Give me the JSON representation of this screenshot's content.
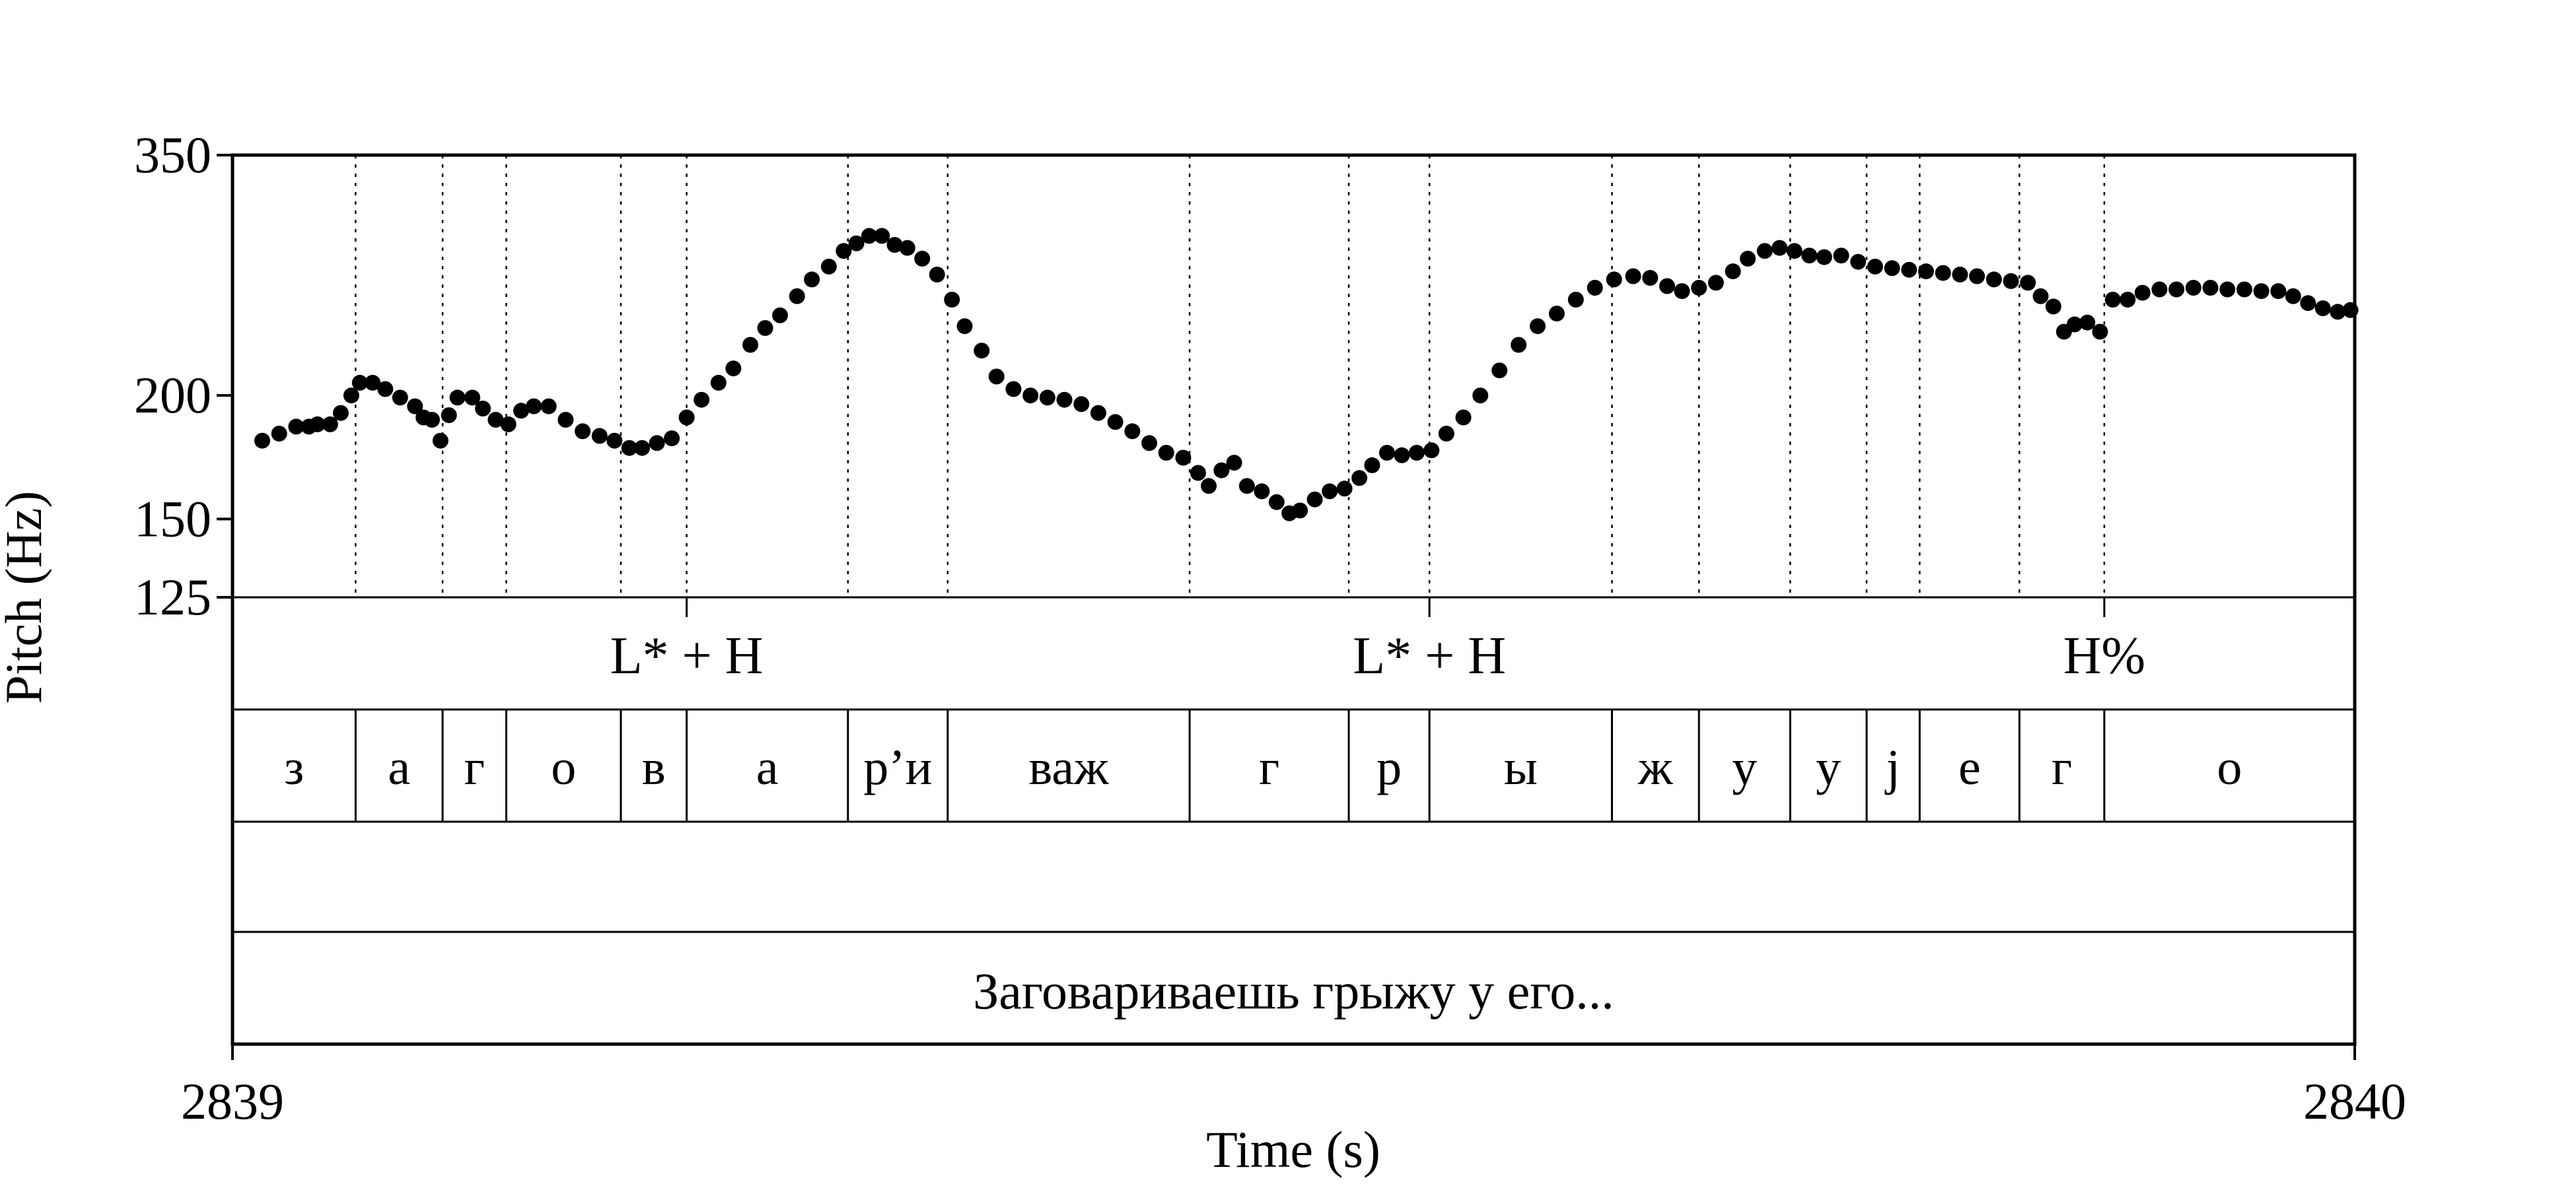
{
  "chart_data": {
    "type": "scatter",
    "title": "",
    "xlabel": "Time (s)",
    "ylabel": "Pitch (Hz)",
    "xlim": [
      2839,
      2840
    ],
    "ylim": [
      125,
      350
    ],
    "y_scale": "log",
    "yticks": [
      125,
      150,
      200,
      350
    ],
    "xticks": [
      2839,
      2840
    ],
    "grid": false,
    "legend": "none",
    "point_color": "#000000",
    "boundaries": [
      2839.058,
      2839.099,
      2839.129,
      2839.183,
      2839.214,
      2839.29,
      2839.337,
      2839.451,
      2839.526,
      2839.564,
      2839.65,
      2839.691,
      2839.734,
      2839.77,
      2839.795,
      2839.842,
      2839.882
    ],
    "tiers": {
      "tones": [
        {
          "label": "L* + H",
          "time": 2839.214
        },
        {
          "label": "L* + H",
          "time": 2839.564
        },
        {
          "label": "H%",
          "time": 2839.882
        }
      ],
      "segments": [
        {
          "label": "з",
          "start": 2839.0,
          "end": 2839.058
        },
        {
          "label": "а",
          "start": 2839.058,
          "end": 2839.099
        },
        {
          "label": "г",
          "start": 2839.099,
          "end": 2839.129
        },
        {
          "label": "о",
          "start": 2839.129,
          "end": 2839.183
        },
        {
          "label": "в",
          "start": 2839.183,
          "end": 2839.214
        },
        {
          "label": "а",
          "start": 2839.214,
          "end": 2839.29
        },
        {
          "label": "р’и",
          "start": 2839.29,
          "end": 2839.337
        },
        {
          "label": "важ",
          "start": 2839.337,
          "end": 2839.451
        },
        {
          "label": "г",
          "start": 2839.451,
          "end": 2839.526
        },
        {
          "label": "р",
          "start": 2839.526,
          "end": 2839.564
        },
        {
          "label": "ы",
          "start": 2839.564,
          "end": 2839.65
        },
        {
          "label": "ж",
          "start": 2839.65,
          "end": 2839.691
        },
        {
          "label": "у",
          "start": 2839.691,
          "end": 2839.734
        },
        {
          "label": "у",
          "start": 2839.734,
          "end": 2839.77
        },
        {
          "label": "j",
          "start": 2839.77,
          "end": 2839.795
        },
        {
          "label": "е",
          "start": 2839.795,
          "end": 2839.842
        },
        {
          "label": "г",
          "start": 2839.842,
          "end": 2839.882
        },
        {
          "label": "о",
          "start": 2839.882,
          "end": 2840.0
        }
      ],
      "sentence": {
        "label": "Заговариваешь грыжу у его...",
        "start": 2839.0,
        "end": 2840.0
      }
    },
    "contour": [
      [
        2839.014,
        180
      ],
      [
        2839.022,
        183
      ],
      [
        2839.03,
        186
      ],
      [
        2839.036,
        186
      ],
      [
        2839.04,
        187
      ],
      [
        2839.046,
        187
      ],
      [
        2839.051,
        192
      ],
      [
        2839.056,
        200
      ],
      [
        2839.06,
        206
      ],
      [
        2839.066,
        206
      ],
      [
        2839.072,
        203
      ],
      [
        2839.079,
        199
      ],
      [
        2839.086,
        195
      ],
      [
        2839.09,
        190
      ],
      [
        2839.094,
        189
      ],
      [
        2839.098,
        180
      ],
      [
        2839.102,
        191
      ],
      [
        2839.106,
        199
      ],
      [
        2839.113,
        199
      ],
      [
        2839.118,
        194
      ],
      [
        2839.124,
        189
      ],
      [
        2839.13,
        187
      ],
      [
        2839.136,
        193
      ],
      [
        2839.142,
        195
      ],
      [
        2839.149,
        195
      ],
      [
        2839.157,
        189
      ],
      [
        2839.165,
        184
      ],
      [
        2839.173,
        182
      ],
      [
        2839.18,
        180
      ],
      [
        2839.187,
        177
      ],
      [
        2839.193,
        177
      ],
      [
        2839.2,
        179
      ],
      [
        2839.207,
        181
      ],
      [
        2839.214,
        190
      ],
      [
        2839.221,
        198
      ],
      [
        2839.229,
        206
      ],
      [
        2839.236,
        213
      ],
      [
        2839.244,
        225
      ],
      [
        2839.251,
        234
      ],
      [
        2839.258,
        241
      ],
      [
        2839.266,
        252
      ],
      [
        2839.273,
        262
      ],
      [
        2839.281,
        270
      ],
      [
        2839.288,
        280
      ],
      [
        2839.294,
        285
      ],
      [
        2839.3,
        290
      ],
      [
        2839.306,
        290
      ],
      [
        2839.312,
        284
      ],
      [
        2839.318,
        282
      ],
      [
        2839.325,
        275
      ],
      [
        2839.332,
        265
      ],
      [
        2839.339,
        250
      ],
      [
        2839.345,
        235
      ],
      [
        2839.353,
        222
      ],
      [
        2839.36,
        209
      ],
      [
        2839.368,
        203
      ],
      [
        2839.376,
        200
      ],
      [
        2839.384,
        199
      ],
      [
        2839.392,
        198
      ],
      [
        2839.4,
        196
      ],
      [
        2839.408,
        192
      ],
      [
        2839.416,
        188
      ],
      [
        2839.424,
        184
      ],
      [
        2839.432,
        179
      ],
      [
        2839.44,
        175
      ],
      [
        2839.448,
        173
      ],
      [
        2839.455,
        167
      ],
      [
        2839.46,
        162
      ],
      [
        2839.466,
        168
      ],
      [
        2839.472,
        171
      ],
      [
        2839.478,
        162
      ],
      [
        2839.485,
        160
      ],
      [
        2839.492,
        156
      ],
      [
        2839.498,
        152
      ],
      [
        2839.503,
        153
      ],
      [
        2839.51,
        157
      ],
      [
        2839.517,
        160
      ],
      [
        2839.524,
        161
      ],
      [
        2839.531,
        165
      ],
      [
        2839.537,
        170
      ],
      [
        2839.544,
        175
      ],
      [
        2839.551,
        174
      ],
      [
        2839.558,
        175
      ],
      [
        2839.565,
        176
      ],
      [
        2839.572,
        183
      ],
      [
        2839.58,
        190
      ],
      [
        2839.588,
        200
      ],
      [
        2839.597,
        212
      ],
      [
        2839.606,
        225
      ],
      [
        2839.615,
        235
      ],
      [
        2839.624,
        242
      ],
      [
        2839.633,
        250
      ],
      [
        2839.642,
        257
      ],
      [
        2839.651,
        262
      ],
      [
        2839.66,
        264
      ],
      [
        2839.668,
        263
      ],
      [
        2839.676,
        258
      ],
      [
        2839.683,
        255
      ],
      [
        2839.691,
        257
      ],
      [
        2839.699,
        260
      ],
      [
        2839.707,
        267
      ],
      [
        2839.714,
        275
      ],
      [
        2839.722,
        280
      ],
      [
        2839.729,
        282
      ],
      [
        2839.736,
        280
      ],
      [
        2839.743,
        277
      ],
      [
        2839.75,
        276
      ],
      [
        2839.758,
        277
      ],
      [
        2839.766,
        273
      ],
      [
        2839.774,
        270
      ],
      [
        2839.782,
        269
      ],
      [
        2839.79,
        268
      ],
      [
        2839.798,
        267
      ],
      [
        2839.806,
        266
      ],
      [
        2839.814,
        265
      ],
      [
        2839.822,
        264
      ],
      [
        2839.83,
        262
      ],
      [
        2839.838,
        261
      ],
      [
        2839.846,
        260
      ],
      [
        2839.852,
        252
      ],
      [
        2839.858,
        246
      ],
      [
        2839.863,
        232
      ],
      [
        2839.868,
        236
      ],
      [
        2839.874,
        237
      ],
      [
        2839.88,
        232
      ],
      [
        2839.886,
        250
      ],
      [
        2839.893,
        250
      ],
      [
        2839.9,
        254
      ],
      [
        2839.908,
        256
      ],
      [
        2839.916,
        256
      ],
      [
        2839.924,
        257
      ],
      [
        2839.932,
        257
      ],
      [
        2839.94,
        256
      ],
      [
        2839.948,
        256
      ],
      [
        2839.956,
        255
      ],
      [
        2839.964,
        255
      ],
      [
        2839.971,
        252
      ],
      [
        2839.978,
        248
      ],
      [
        2839.985,
        245
      ],
      [
        2839.992,
        243
      ],
      [
        2839.998,
        244
      ]
    ]
  }
}
